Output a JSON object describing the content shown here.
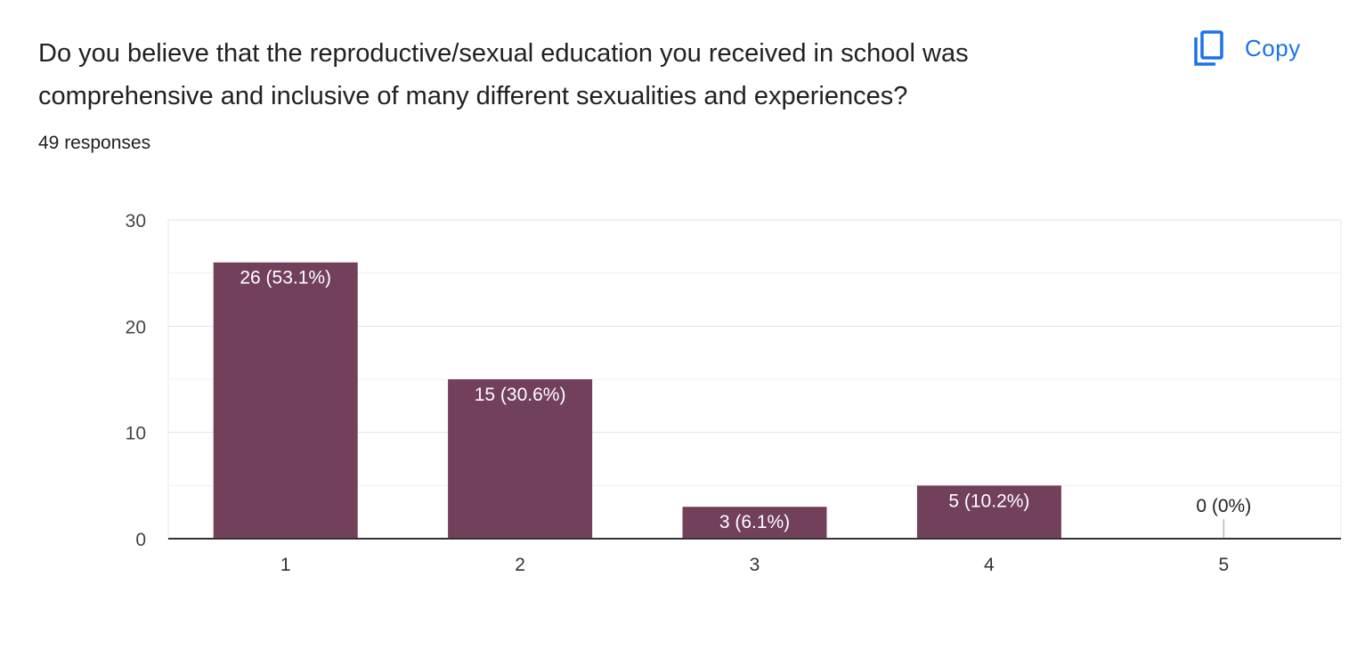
{
  "question": {
    "title": "Do you believe that the reproductive/sexual education you received in school was comprehensive and inclusive of many different sexualities and experiences?",
    "responses_label": "49 responses"
  },
  "copy_button": {
    "label": "Copy",
    "icon": "copy-icon"
  },
  "colors": {
    "bar": "#72405b",
    "accent": "#1a73e8"
  },
  "chart_data": {
    "type": "bar",
    "categories": [
      "1",
      "2",
      "3",
      "4",
      "5"
    ],
    "values": [
      26,
      15,
      3,
      5,
      0
    ],
    "data_labels": [
      "26 (53.1%)",
      "15 (30.6%)",
      "3 (6.1%)",
      "5 (10.2%)",
      "0 (0%)"
    ],
    "y_ticks": [
      0,
      10,
      20,
      30
    ],
    "ylim": [
      0,
      30
    ],
    "grid": true,
    "title": "",
    "xlabel": "",
    "ylabel": ""
  }
}
